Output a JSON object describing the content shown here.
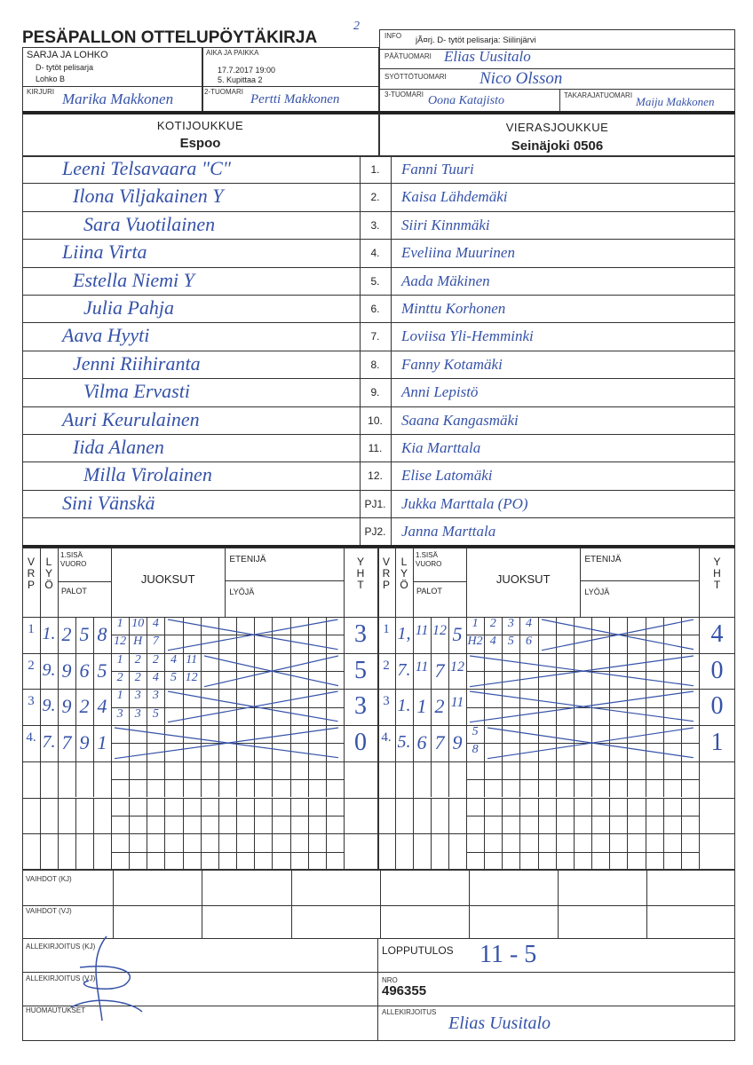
{
  "title": "PESÄPALLON OTTELUPÖYTÄKIRJA",
  "page_mark": "2",
  "header": {
    "sarja_label": "SARJA JA LOHKO",
    "sarja_value": "D- tytöt pelisarja",
    "lohko_value": "Lohko B",
    "aika_label": "AIKA JA PAIKKA",
    "aika_value": "17.7.2017 19:00",
    "paikka_value": "5. Kupittaa 2",
    "kirjuri_label": "KIRJURI",
    "kirjuri_value": "Marika Makkonen",
    "tuomari2_label": "2-TUOMARI",
    "tuomari2_value": "Pertti Makkonen",
    "info_label": "INFO",
    "info_value": "jÃ¤rj. D- tytöt pelisarja: Siilinjärvi",
    "paatuomari_label": "PÄÄTUOMARI",
    "paatuomari_value": "Elias Uusitalo",
    "syotto_label": "SYÖTTÖTUOMARI",
    "syotto_value": "Nico Olsson",
    "tuomari3_label": "3-TUOMARI",
    "tuomari3_value": "Oona Katajisto",
    "takaraja_label": "TAKARAJATUOMARI",
    "takaraja_value": "Maiju Makkonen"
  },
  "home": {
    "label": "KOTIJOUKKUE",
    "name": "Espoo",
    "players": [
      "Leeni Telsavaara \"C\"",
      "Ilona Viljakainen  Y",
      "Sara Vuotilainen",
      "Liina Virta",
      "Estella Niemi  Y",
      "Julia Pahja",
      "Aava Hyyti",
      "Jenni Riihiranta",
      "Vilma Ervasti",
      "Auri Keurulainen",
      "Iida Alanen",
      "Milla Virolainen",
      "Sini Vänskä",
      ""
    ]
  },
  "away": {
    "label": "VIERASJOUKKUE",
    "name": "Seinäjoki 0506",
    "players": [
      "Fanni Tuuri",
      "Kaisa Lähdemäki",
      "Siiri Kinnmäki",
      "Eveliina Muurinen",
      "Aada Mäkinen",
      "Minttu Korhonen",
      "Loviisa Yli-Hemminki",
      "Fanny Kotamäki",
      "Anni Lepistö",
      "Saana Kangasmäki",
      "Kia Marttala",
      "Elise Latomäki",
      "Jukka Marttala  (PO)",
      "Janna Marttala"
    ]
  },
  "row_numbers": [
    "1.",
    "2.",
    "3.",
    "4.",
    "5.",
    "6.",
    "7.",
    "8.",
    "9.",
    "10.",
    "11.",
    "12.",
    "PJ1.",
    "PJ2."
  ],
  "score_header": {
    "vrp": [
      "V",
      "R",
      "P"
    ],
    "lyo": [
      "L",
      "Y",
      "Ö"
    ],
    "sisa": "1.SISÄ VUORO",
    "palot": "PALOT",
    "juoksut": "JUOKSUT",
    "etenija": "ETENIJÄ",
    "lyoja": "LYÖJÄ",
    "yht": [
      "Y",
      "H",
      "T"
    ]
  },
  "home_innings": [
    {
      "vrp": "1",
      "lyo": "1.",
      "palot": [
        "2",
        "5",
        "8"
      ],
      "runs_top": [
        "1",
        "10",
        "4"
      ],
      "runs_bottom": [
        "12",
        "H",
        "7"
      ],
      "yht": "3"
    },
    {
      "vrp": "2",
      "lyo": "9.",
      "palot": [
        "9",
        "6",
        "5"
      ],
      "runs_top": [
        "1",
        "2",
        "2",
        "4",
        "11"
      ],
      "runs_bottom": [
        "2",
        "2",
        "4",
        "5",
        "12"
      ],
      "yht": "5"
    },
    {
      "vrp": "3",
      "lyo": "9.",
      "palot": [
        "9",
        "2",
        "4"
      ],
      "runs_top": [
        "1",
        "3",
        "3"
      ],
      "runs_bottom": [
        "3",
        "3",
        "5"
      ],
      "yht": "3"
    },
    {
      "vrp": "4.",
      "lyo": "7.",
      "palot": [
        "7",
        "9",
        "1"
      ],
      "runs_top": [],
      "runs_bottom": [],
      "yht": "0"
    }
  ],
  "away_innings": [
    {
      "vrp": "1",
      "lyo": "1,",
      "palot": [
        "11",
        "12",
        "5"
      ],
      "runs_top": [
        "1",
        "2",
        "3",
        "4"
      ],
      "runs_bottom": [
        "H2",
        "4",
        "5",
        "6"
      ],
      "yht": "4"
    },
    {
      "vrp": "2",
      "lyo": "7.",
      "palot": [
        "11",
        "7",
        "12"
      ],
      "runs_top": [],
      "runs_bottom": [],
      "yht": "0"
    },
    {
      "vrp": "3",
      "lyo": "1.",
      "palot": [
        "1",
        "2",
        "11"
      ],
      "runs_top": [],
      "runs_bottom": [],
      "yht": "0"
    },
    {
      "vrp": "4.",
      "lyo": "5.",
      "palot": [
        "6",
        "7",
        "9"
      ],
      "runs_top": [
        "5"
      ],
      "runs_bottom": [
        "8"
      ],
      "yht": "1"
    }
  ],
  "footer": {
    "vaihdot_kj": "VAIHDOT (KJ)",
    "vaihdot_vj": "VAIHDOT (VJ)",
    "allekirjoitus_kj": "ALLEKIRJOITUS (KJ)",
    "allekirjoitus_vj": "ALLEKIRJOITUS (VJ)",
    "huomautukset": "HUOMAUTUKSET",
    "lopputulos_label": "LOPPUTULOS",
    "lopputulos_value": "11 - 5",
    "nro_label": "NRO",
    "nro_value": "496355",
    "allekirjoitus_label": "ALLEKIRJOITUS",
    "allekirjoitus_value": "Elias Uusitalo"
  },
  "colors": {
    "ink": "#3552a8",
    "lines": "#333333"
  }
}
